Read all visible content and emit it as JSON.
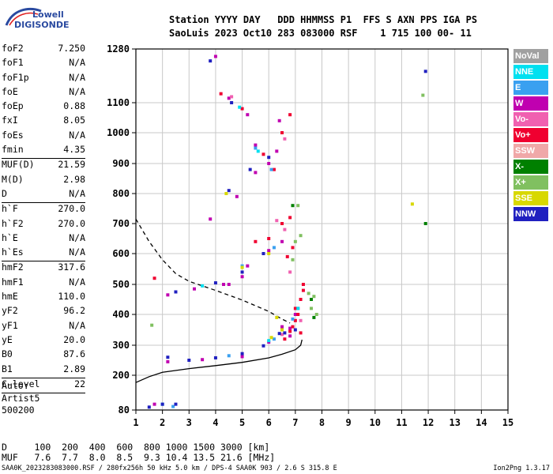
{
  "logo": {
    "line1": "Lowell",
    "line2": "DIGISONDE"
  },
  "header": {
    "line1": "Station YYYY DAY   DDD HHMMSS P1  FFS S AXN PPS IGA PS",
    "line2": "SaoLuis 2023 Oct10 283 083000 RSF    1 715 100 00- 11"
  },
  "params": [
    {
      "k": "foF2",
      "v": "7.250"
    },
    {
      "k": "foF1",
      "v": "N/A"
    },
    {
      "k": "foF1p",
      "v": "N/A"
    },
    {
      "k": "foE",
      "v": "N/A"
    },
    {
      "k": "foEp",
      "v": "0.88"
    },
    {
      "k": "fxI",
      "v": "8.05"
    },
    {
      "k": "foEs",
      "v": "N/A"
    },
    {
      "k": "fmin",
      "v": "4.35",
      "sep": true
    },
    {
      "k": "MUF(D)",
      "v": "21.59"
    },
    {
      "k": "M(D)",
      "v": "2.98"
    },
    {
      "k": "D",
      "v": "N/A",
      "sep": true
    },
    {
      "k": "h`F",
      "v": "270.0"
    },
    {
      "k": "h`F2",
      "v": "270.0"
    },
    {
      "k": "h`E",
      "v": "N/A"
    },
    {
      "k": "h`Es",
      "v": "N/A",
      "sep": true
    },
    {
      "k": "hmF2",
      "v": "317.6"
    },
    {
      "k": "hmF1",
      "v": "N/A"
    },
    {
      "k": "hmE",
      "v": "110.0"
    },
    {
      "k": "yF2",
      "v": "96.2"
    },
    {
      "k": "yF1",
      "v": "N/A"
    },
    {
      "k": "yE",
      "v": "20.0"
    },
    {
      "k": "B0",
      "v": "87.6"
    },
    {
      "k": "B1",
      "v": "2.89",
      "sep": true
    },
    {
      "k": "C-level",
      "v": "22",
      "sep": true
    }
  ],
  "auto": {
    "line1": "Auto:",
    "line2": "Artist5",
    "line3": "500200"
  },
  "legend": [
    {
      "label": "NoVal",
      "color": "#a0a0a0"
    },
    {
      "label": "NNE",
      "color": "#00e0f0"
    },
    {
      "label": "E",
      "color": "#3aa0f0"
    },
    {
      "label": "W",
      "color": "#c000b0"
    },
    {
      "label": "Vo-",
      "color": "#f060b0"
    },
    {
      "label": "Vo+",
      "color": "#f00030"
    },
    {
      "label": "SSW",
      "color": "#f0a8a8"
    },
    {
      "label": "X-",
      "color": "#008000"
    },
    {
      "label": "X+",
      "color": "#80c060"
    },
    {
      "label": "SSE",
      "color": "#d8d800"
    },
    {
      "label": "NNW",
      "color": "#2020c0"
    }
  ],
  "footer": {
    "d_line": "D     100  200  400  600  800 1000 1500 3000 [km]",
    "muf_line": "MUF   7.6  7.7  8.0  8.5  9.3 10.4 13.5 21.6 [MHz]",
    "source": "SAA0K_2023283083000.RSF / 280fx256h 50 kHz 5.0 km / DPS-4 SAA0K 903 / 2.6 S 315.8 E",
    "version": "Ion2Png 1.3.17"
  },
  "chart_data": {
    "type": "scatter",
    "xlim": [
      1,
      15
    ],
    "ylim": [
      80,
      1280
    ],
    "x_ticks": [
      1,
      2,
      3,
      4,
      5,
      6,
      7,
      8,
      9,
      10,
      11,
      12,
      13,
      14,
      15
    ],
    "y_ticks": [
      80,
      200,
      300,
      400,
      500,
      600,
      700,
      800,
      900,
      1000,
      1100,
      1280
    ],
    "grid": true,
    "series": [
      {
        "name": "W",
        "color": "#c000b0",
        "points": [
          [
            4.0,
            1255
          ],
          [
            4.5,
            1115
          ],
          [
            5.2,
            1060
          ],
          [
            5.5,
            960
          ],
          [
            6.0,
            900
          ],
          [
            6.3,
            940
          ],
          [
            4.8,
            790
          ],
          [
            5.5,
            870
          ],
          [
            6.4,
            1040
          ],
          [
            3.8,
            715
          ],
          [
            4.5,
            500
          ],
          [
            5.2,
            560
          ],
          [
            6.0,
            610
          ],
          [
            6.5,
            640
          ],
          [
            2.2,
            465
          ],
          [
            3.2,
            485
          ],
          [
            4.3,
            500
          ],
          [
            5.0,
            525
          ],
          [
            6.5,
            360
          ],
          [
            6.8,
            355
          ],
          [
            7.0,
            400
          ],
          [
            2.2,
            245
          ],
          [
            3.5,
            252
          ],
          [
            5.0,
            262
          ],
          [
            6.0,
            310
          ],
          [
            6.8,
            330
          ],
          [
            7.1,
            420
          ],
          [
            1.7,
            100
          ]
        ]
      },
      {
        "name": "Vo+",
        "color": "#f00030",
        "points": [
          [
            4.2,
            1130
          ],
          [
            5.0,
            1080
          ],
          [
            5.8,
            930
          ],
          [
            6.2,
            880
          ],
          [
            6.5,
            1000
          ],
          [
            6.8,
            1060
          ],
          [
            5.5,
            640
          ],
          [
            6.0,
            650
          ],
          [
            6.5,
            700
          ],
          [
            6.8,
            720
          ],
          [
            6.7,
            590
          ],
          [
            6.9,
            620
          ],
          [
            7.0,
            380
          ],
          [
            7.1,
            400
          ],
          [
            7.2,
            450
          ],
          [
            7.3,
            500
          ],
          [
            7.2,
            340
          ],
          [
            6.8,
            345
          ],
          [
            6.6,
            320
          ],
          [
            7.0,
            420
          ],
          [
            7.3,
            480
          ],
          [
            6.9,
            360
          ],
          [
            1.7,
            520
          ]
        ]
      },
      {
        "name": "Vo-",
        "color": "#f060b0",
        "points": [
          [
            4.6,
            1120
          ],
          [
            6.6,
            980
          ],
          [
            6.3,
            710
          ],
          [
            6.6,
            680
          ],
          [
            6.8,
            540
          ],
          [
            7.2,
            380
          ],
          [
            6.5,
            335
          ]
        ]
      },
      {
        "name": "E",
        "color": "#3aa0f0",
        "points": [
          [
            5.5,
            950
          ],
          [
            6.1,
            880
          ],
          [
            5.0,
            560
          ],
          [
            6.2,
            620
          ],
          [
            4.5,
            265
          ],
          [
            6.2,
            320
          ],
          [
            6.9,
            385
          ],
          [
            2.4,
            92
          ]
        ]
      },
      {
        "name": "NNE",
        "color": "#00e0f0",
        "points": [
          [
            4.9,
            1085
          ],
          [
            5.6,
            940
          ],
          [
            3.5,
            495
          ],
          [
            6.0,
            315
          ],
          [
            7.1,
            420
          ],
          [
            2.0,
            100
          ]
        ]
      },
      {
        "name": "NNW",
        "color": "#2020c0",
        "points": [
          [
            3.8,
            1240
          ],
          [
            4.6,
            1100
          ],
          [
            5.3,
            880
          ],
          [
            6.0,
            920
          ],
          [
            4.5,
            810
          ],
          [
            5.0,
            540
          ],
          [
            5.8,
            600
          ],
          [
            2.5,
            475
          ],
          [
            4.0,
            505
          ],
          [
            2.2,
            260
          ],
          [
            3.0,
            250
          ],
          [
            4.0,
            258
          ],
          [
            5.0,
            272
          ],
          [
            5.8,
            298
          ],
          [
            6.4,
            338
          ],
          [
            6.6,
            340
          ],
          [
            7.0,
            350
          ],
          [
            1.5,
            90
          ],
          [
            2.0,
            100
          ],
          [
            2.5,
            100
          ],
          [
            11.9,
            1205
          ]
        ]
      },
      {
        "name": "X-",
        "color": "#008000",
        "points": [
          [
            7.7,
            390
          ],
          [
            7.6,
            450
          ],
          [
            6.9,
            760
          ],
          [
            11.9,
            700
          ]
        ]
      },
      {
        "name": "X+",
        "color": "#80c060",
        "points": [
          [
            7.6,
            420
          ],
          [
            7.8,
            400
          ],
          [
            7.7,
            460
          ],
          [
            7.5,
            470
          ],
          [
            7.2,
            660
          ],
          [
            7.0,
            640
          ],
          [
            7.1,
            760
          ],
          [
            6.9,
            580
          ],
          [
            1.6,
            365
          ],
          [
            11.8,
            1125
          ]
        ]
      },
      {
        "name": "SSE",
        "color": "#d8d800",
        "points": [
          [
            6.3,
            390
          ],
          [
            6.5,
            350
          ],
          [
            4.4,
            800
          ],
          [
            5.0,
            555
          ],
          [
            11.4,
            765
          ],
          [
            6.1,
            325
          ],
          [
            6.0,
            600
          ]
        ]
      }
    ],
    "curves": [
      {
        "name": "profile-solid",
        "style": "solid",
        "points": [
          [
            1.0,
            175
          ],
          [
            1.5,
            195
          ],
          [
            2.0,
            210
          ],
          [
            3.0,
            222
          ],
          [
            4.0,
            232
          ],
          [
            5.0,
            243
          ],
          [
            6.0,
            258
          ],
          [
            6.5,
            270
          ],
          [
            7.0,
            285
          ],
          [
            7.2,
            300
          ],
          [
            7.25,
            318
          ]
        ]
      },
      {
        "name": "profile-dashed",
        "style": "dashed",
        "points": [
          [
            1.0,
            715
          ],
          [
            1.5,
            640
          ],
          [
            2.0,
            580
          ],
          [
            2.5,
            535
          ],
          [
            3.0,
            510
          ],
          [
            4.0,
            480
          ],
          [
            5.0,
            448
          ],
          [
            6.0,
            410
          ],
          [
            6.5,
            385
          ],
          [
            6.8,
            372
          ]
        ]
      }
    ]
  }
}
